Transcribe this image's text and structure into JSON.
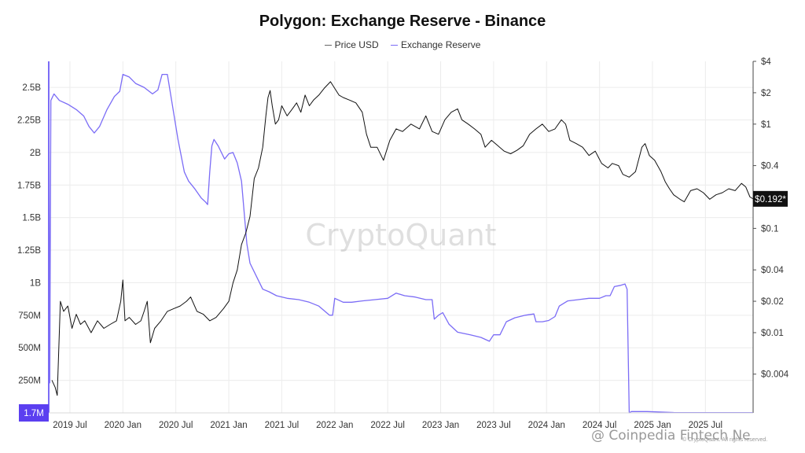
{
  "chart_data": {
    "type": "line",
    "title": "Polygon: Exchange Reserve - Binance",
    "legend_position": "top-center",
    "grid": true,
    "x_ticks": [
      "2019 Jul",
      "2020 Jan",
      "2020 Jul",
      "2021 Jan",
      "2021 Jul",
      "2022 Jan",
      "2022 Jul",
      "2023 Jan",
      "2023 Jul",
      "2024 Jan",
      "2024 Jul",
      "2025 Jan",
      "2025 Jul"
    ],
    "x_range": [
      2019.3,
      2025.95
    ],
    "left_axis": {
      "series": "Exchange Reserve",
      "range": [
        0,
        2.7
      ],
      "tick_values": [
        0.25,
        0.5,
        0.75,
        1,
        1.25,
        1.5,
        1.75,
        2,
        2.25,
        2.5
      ],
      "tick_labels": [
        "250M",
        "500M",
        "750M",
        "1B",
        "1.25B",
        "1.5B",
        "1.75B",
        "2B",
        "2.25B",
        "2.5B"
      ],
      "current_label": "1.7M"
    },
    "right_axis": {
      "series": "Price USD",
      "scale": "log",
      "range": [
        0.0017,
        4
      ],
      "tick_values": [
        4,
        2,
        1,
        0.4,
        0.1,
        0.04,
        0.02,
        0.01,
        0.004
      ],
      "tick_labels": [
        "$4",
        "$2",
        "$1",
        "$0.4",
        "$0.1",
        "$0.04",
        "$0.02",
        "$0.01",
        "$0.004"
      ],
      "current_label": "$0.192*",
      "current_value": 0.192
    },
    "series": [
      {
        "name": "Price USD",
        "color": "#111111",
        "points": [
          [
            2019.33,
            0.0035
          ],
          [
            2019.36,
            0.003
          ],
          [
            2019.38,
            0.0025
          ],
          [
            2019.41,
            0.02
          ],
          [
            2019.44,
            0.016
          ],
          [
            2019.48,
            0.018
          ],
          [
            2019.52,
            0.011
          ],
          [
            2019.56,
            0.015
          ],
          [
            2019.6,
            0.012
          ],
          [
            2019.64,
            0.013
          ],
          [
            2019.7,
            0.01
          ],
          [
            2019.76,
            0.013
          ],
          [
            2019.82,
            0.011
          ],
          [
            2019.88,
            0.012
          ],
          [
            2019.94,
            0.013
          ],
          [
            2019.98,
            0.02
          ],
          [
            2020.0,
            0.032
          ],
          [
            2020.02,
            0.013
          ],
          [
            2020.06,
            0.014
          ],
          [
            2020.12,
            0.012
          ],
          [
            2020.17,
            0.013
          ],
          [
            2020.2,
            0.016
          ],
          [
            2020.23,
            0.02
          ],
          [
            2020.26,
            0.008
          ],
          [
            2020.3,
            0.011
          ],
          [
            2020.36,
            0.013
          ],
          [
            2020.42,
            0.016
          ],
          [
            2020.48,
            0.017
          ],
          [
            2020.54,
            0.018
          ],
          [
            2020.6,
            0.02
          ],
          [
            2020.64,
            0.022
          ],
          [
            2020.7,
            0.016
          ],
          [
            2020.76,
            0.015
          ],
          [
            2020.82,
            0.013
          ],
          [
            2020.88,
            0.014
          ],
          [
            2020.95,
            0.017
          ],
          [
            2021.0,
            0.02
          ],
          [
            2021.04,
            0.03
          ],
          [
            2021.08,
            0.04
          ],
          [
            2021.12,
            0.07
          ],
          [
            2021.16,
            0.09
          ],
          [
            2021.2,
            0.13
          ],
          [
            2021.24,
            0.3
          ],
          [
            2021.28,
            0.38
          ],
          [
            2021.32,
            0.6
          ],
          [
            2021.35,
            1.2
          ],
          [
            2021.37,
            1.8
          ],
          [
            2021.39,
            2.1
          ],
          [
            2021.41,
            1.5
          ],
          [
            2021.44,
            1.0
          ],
          [
            2021.47,
            1.1
          ],
          [
            2021.5,
            1.5
          ],
          [
            2021.55,
            1.2
          ],
          [
            2021.6,
            1.4
          ],
          [
            2021.64,
            1.6
          ],
          [
            2021.68,
            1.3
          ],
          [
            2021.72,
            1.9
          ],
          [
            2021.76,
            1.5
          ],
          [
            2021.8,
            1.7
          ],
          [
            2021.85,
            1.9
          ],
          [
            2021.9,
            2.2
          ],
          [
            2021.96,
            2.55
          ],
          [
            2022.0,
            2.2
          ],
          [
            2022.04,
            1.9
          ],
          [
            2022.08,
            1.8
          ],
          [
            2022.14,
            1.7
          ],
          [
            2022.2,
            1.6
          ],
          [
            2022.26,
            1.3
          ],
          [
            2022.3,
            0.8
          ],
          [
            2022.34,
            0.6
          ],
          [
            2022.4,
            0.6
          ],
          [
            2022.46,
            0.45
          ],
          [
            2022.52,
            0.7
          ],
          [
            2022.58,
            0.9
          ],
          [
            2022.64,
            0.85
          ],
          [
            2022.72,
            1.0
          ],
          [
            2022.8,
            0.9
          ],
          [
            2022.86,
            1.2
          ],
          [
            2022.92,
            0.85
          ],
          [
            2022.98,
            0.8
          ],
          [
            2023.04,
            1.1
          ],
          [
            2023.1,
            1.3
          ],
          [
            2023.16,
            1.4
          ],
          [
            2023.2,
            1.1
          ],
          [
            2023.26,
            1.0
          ],
          [
            2023.32,
            0.9
          ],
          [
            2023.38,
            0.8
          ],
          [
            2023.42,
            0.6
          ],
          [
            2023.48,
            0.7
          ],
          [
            2023.54,
            0.62
          ],
          [
            2023.6,
            0.55
          ],
          [
            2023.66,
            0.52
          ],
          [
            2023.72,
            0.56
          ],
          [
            2023.78,
            0.62
          ],
          [
            2023.84,
            0.8
          ],
          [
            2023.9,
            0.9
          ],
          [
            2023.96,
            1.0
          ],
          [
            2024.02,
            0.85
          ],
          [
            2024.08,
            0.9
          ],
          [
            2024.14,
            1.1
          ],
          [
            2024.18,
            1.0
          ],
          [
            2024.22,
            0.7
          ],
          [
            2024.28,
            0.65
          ],
          [
            2024.34,
            0.6
          ],
          [
            2024.4,
            0.5
          ],
          [
            2024.46,
            0.55
          ],
          [
            2024.52,
            0.42
          ],
          [
            2024.58,
            0.38
          ],
          [
            2024.62,
            0.42
          ],
          [
            2024.68,
            0.4
          ],
          [
            2024.72,
            0.33
          ],
          [
            2024.78,
            0.31
          ],
          [
            2024.84,
            0.35
          ],
          [
            2024.9,
            0.6
          ],
          [
            2024.93,
            0.65
          ],
          [
            2024.97,
            0.5
          ],
          [
            2025.02,
            0.45
          ],
          [
            2025.08,
            0.35
          ],
          [
            2025.12,
            0.28
          ],
          [
            2025.16,
            0.24
          ],
          [
            2025.2,
            0.21
          ],
          [
            2025.26,
            0.19
          ],
          [
            2025.3,
            0.18
          ],
          [
            2025.36,
            0.23
          ],
          [
            2025.42,
            0.24
          ],
          [
            2025.48,
            0.22
          ],
          [
            2025.54,
            0.19
          ],
          [
            2025.6,
            0.21
          ],
          [
            2025.66,
            0.22
          ],
          [
            2025.72,
            0.24
          ],
          [
            2025.78,
            0.23
          ],
          [
            2025.84,
            0.27
          ],
          [
            2025.88,
            0.25
          ],
          [
            2025.92,
            0.2
          ],
          [
            2025.95,
            0.192
          ]
        ]
      },
      {
        "name": "Exchange Reserve",
        "color": "#7b6cf6",
        "points": [
          [
            2019.3,
            2.7
          ],
          [
            2019.31,
            0.23
          ],
          [
            2019.32,
            2.4
          ],
          [
            2019.35,
            2.45
          ],
          [
            2019.4,
            2.4
          ],
          [
            2019.48,
            2.37
          ],
          [
            2019.56,
            2.33
          ],
          [
            2019.63,
            2.28
          ],
          [
            2019.68,
            2.2
          ],
          [
            2019.73,
            2.15
          ],
          [
            2019.78,
            2.2
          ],
          [
            2019.85,
            2.33
          ],
          [
            2019.92,
            2.43
          ],
          [
            2019.97,
            2.47
          ],
          [
            2020.0,
            2.6
          ],
          [
            2020.06,
            2.58
          ],
          [
            2020.12,
            2.53
          ],
          [
            2020.2,
            2.5
          ],
          [
            2020.28,
            2.45
          ],
          [
            2020.33,
            2.48
          ],
          [
            2020.37,
            2.6
          ],
          [
            2020.42,
            2.6
          ],
          [
            2020.46,
            2.4
          ],
          [
            2020.52,
            2.1
          ],
          [
            2020.58,
            1.85
          ],
          [
            2020.62,
            1.78
          ],
          [
            2020.68,
            1.72
          ],
          [
            2020.74,
            1.65
          ],
          [
            2020.78,
            1.62
          ],
          [
            2020.8,
            1.6
          ],
          [
            2020.82,
            1.85
          ],
          [
            2020.84,
            2.05
          ],
          [
            2020.86,
            2.1
          ],
          [
            2020.9,
            2.05
          ],
          [
            2020.96,
            1.95
          ],
          [
            2021.0,
            1.99
          ],
          [
            2021.04,
            2.0
          ],
          [
            2021.08,
            1.92
          ],
          [
            2021.12,
            1.78
          ],
          [
            2021.17,
            1.3
          ],
          [
            2021.2,
            1.15
          ],
          [
            2021.26,
            1.05
          ],
          [
            2021.32,
            0.95
          ],
          [
            2021.38,
            0.93
          ],
          [
            2021.45,
            0.9
          ],
          [
            2021.55,
            0.88
          ],
          [
            2021.66,
            0.87
          ],
          [
            2021.76,
            0.85
          ],
          [
            2021.85,
            0.82
          ],
          [
            2021.95,
            0.75
          ],
          [
            2021.98,
            0.75
          ],
          [
            2022.0,
            0.88
          ],
          [
            2022.08,
            0.85
          ],
          [
            2022.16,
            0.85
          ],
          [
            2022.26,
            0.86
          ],
          [
            2022.38,
            0.87
          ],
          [
            2022.5,
            0.88
          ],
          [
            2022.58,
            0.92
          ],
          [
            2022.66,
            0.9
          ],
          [
            2022.76,
            0.89
          ],
          [
            2022.86,
            0.87
          ],
          [
            2022.92,
            0.87
          ],
          [
            2022.94,
            0.72
          ],
          [
            2022.98,
            0.75
          ],
          [
            2023.02,
            0.77
          ],
          [
            2023.08,
            0.68
          ],
          [
            2023.16,
            0.62
          ],
          [
            2023.28,
            0.6
          ],
          [
            2023.38,
            0.58
          ],
          [
            2023.46,
            0.55
          ],
          [
            2023.5,
            0.6
          ],
          [
            2023.56,
            0.6
          ],
          [
            2023.62,
            0.7
          ],
          [
            2023.7,
            0.73
          ],
          [
            2023.8,
            0.75
          ],
          [
            2023.88,
            0.76
          ],
          [
            2023.9,
            0.7
          ],
          [
            2023.96,
            0.7
          ],
          [
            2024.02,
            0.71
          ],
          [
            2024.08,
            0.74
          ],
          [
            2024.12,
            0.82
          ],
          [
            2024.2,
            0.86
          ],
          [
            2024.3,
            0.87
          ],
          [
            2024.4,
            0.88
          ],
          [
            2024.5,
            0.88
          ],
          [
            2024.56,
            0.9
          ],
          [
            2024.6,
            0.9
          ],
          [
            2024.64,
            0.97
          ],
          [
            2024.7,
            0.98
          ],
          [
            2024.74,
            0.99
          ],
          [
            2024.76,
            0.95
          ],
          [
            2024.78,
            0.0
          ],
          [
            2024.8,
            0.01
          ],
          [
            2024.95,
            0.01
          ],
          [
            2025.2,
            0.003
          ],
          [
            2025.5,
            0.002
          ],
          [
            2025.95,
            0.0017
          ]
        ]
      }
    ]
  },
  "watermark": "CryptoQuant",
  "credit": "@ Coinpedia Fintech Ne",
  "copyright": "© CryptoQuant. All rights reserved."
}
